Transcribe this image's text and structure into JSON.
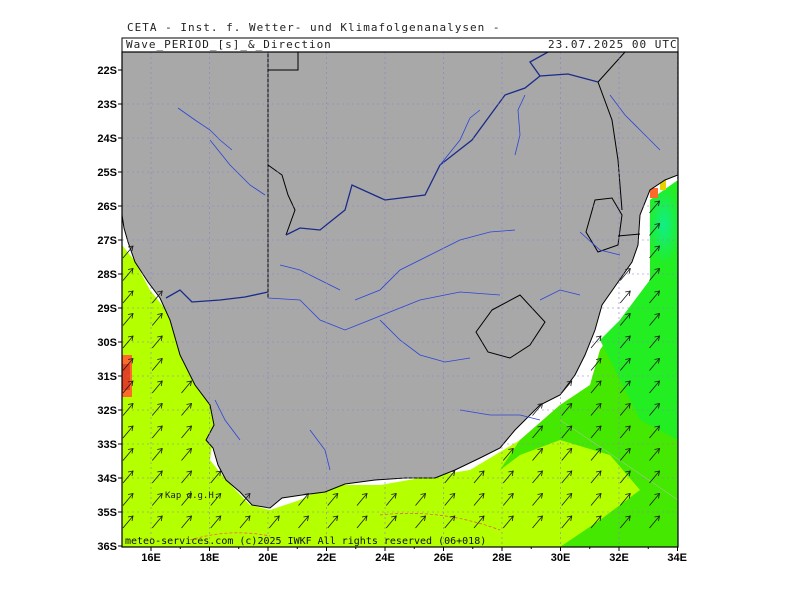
{
  "header": {
    "institute": "CETA - Inst. f. Wetter- und Klimafolgenanalysen -",
    "product": "Wave_PERIOD_[s]_&_Direction",
    "datetime": "23.07.2025 00 UTC"
  },
  "map": {
    "lat_labels": [
      "22S",
      "23S",
      "24S",
      "25S",
      "26S",
      "27S",
      "28S",
      "29S",
      "30S",
      "31S",
      "32S",
      "33S",
      "34S",
      "35S",
      "36S"
    ],
    "lon_labels": [
      "16E",
      "18E",
      "20E",
      "22E",
      "24E",
      "26E",
      "28E",
      "30E",
      "32E",
      "34E"
    ],
    "place_label": "Kap d.g.H.",
    "credit": "meteo-services.com  (c)2025 IWKF  All rights reserved (06+018)",
    "colors": {
      "land": "#a8a8a8",
      "sea_yellowgreen": "#b4ff00",
      "sea_green": "#44e800",
      "sea_bright": "#22ee22",
      "sea_cyan": "#11ee88",
      "warm": "#ff6a2a",
      "border": "#000000",
      "river": "#2c44d8"
    },
    "wave_direction": "NE"
  }
}
